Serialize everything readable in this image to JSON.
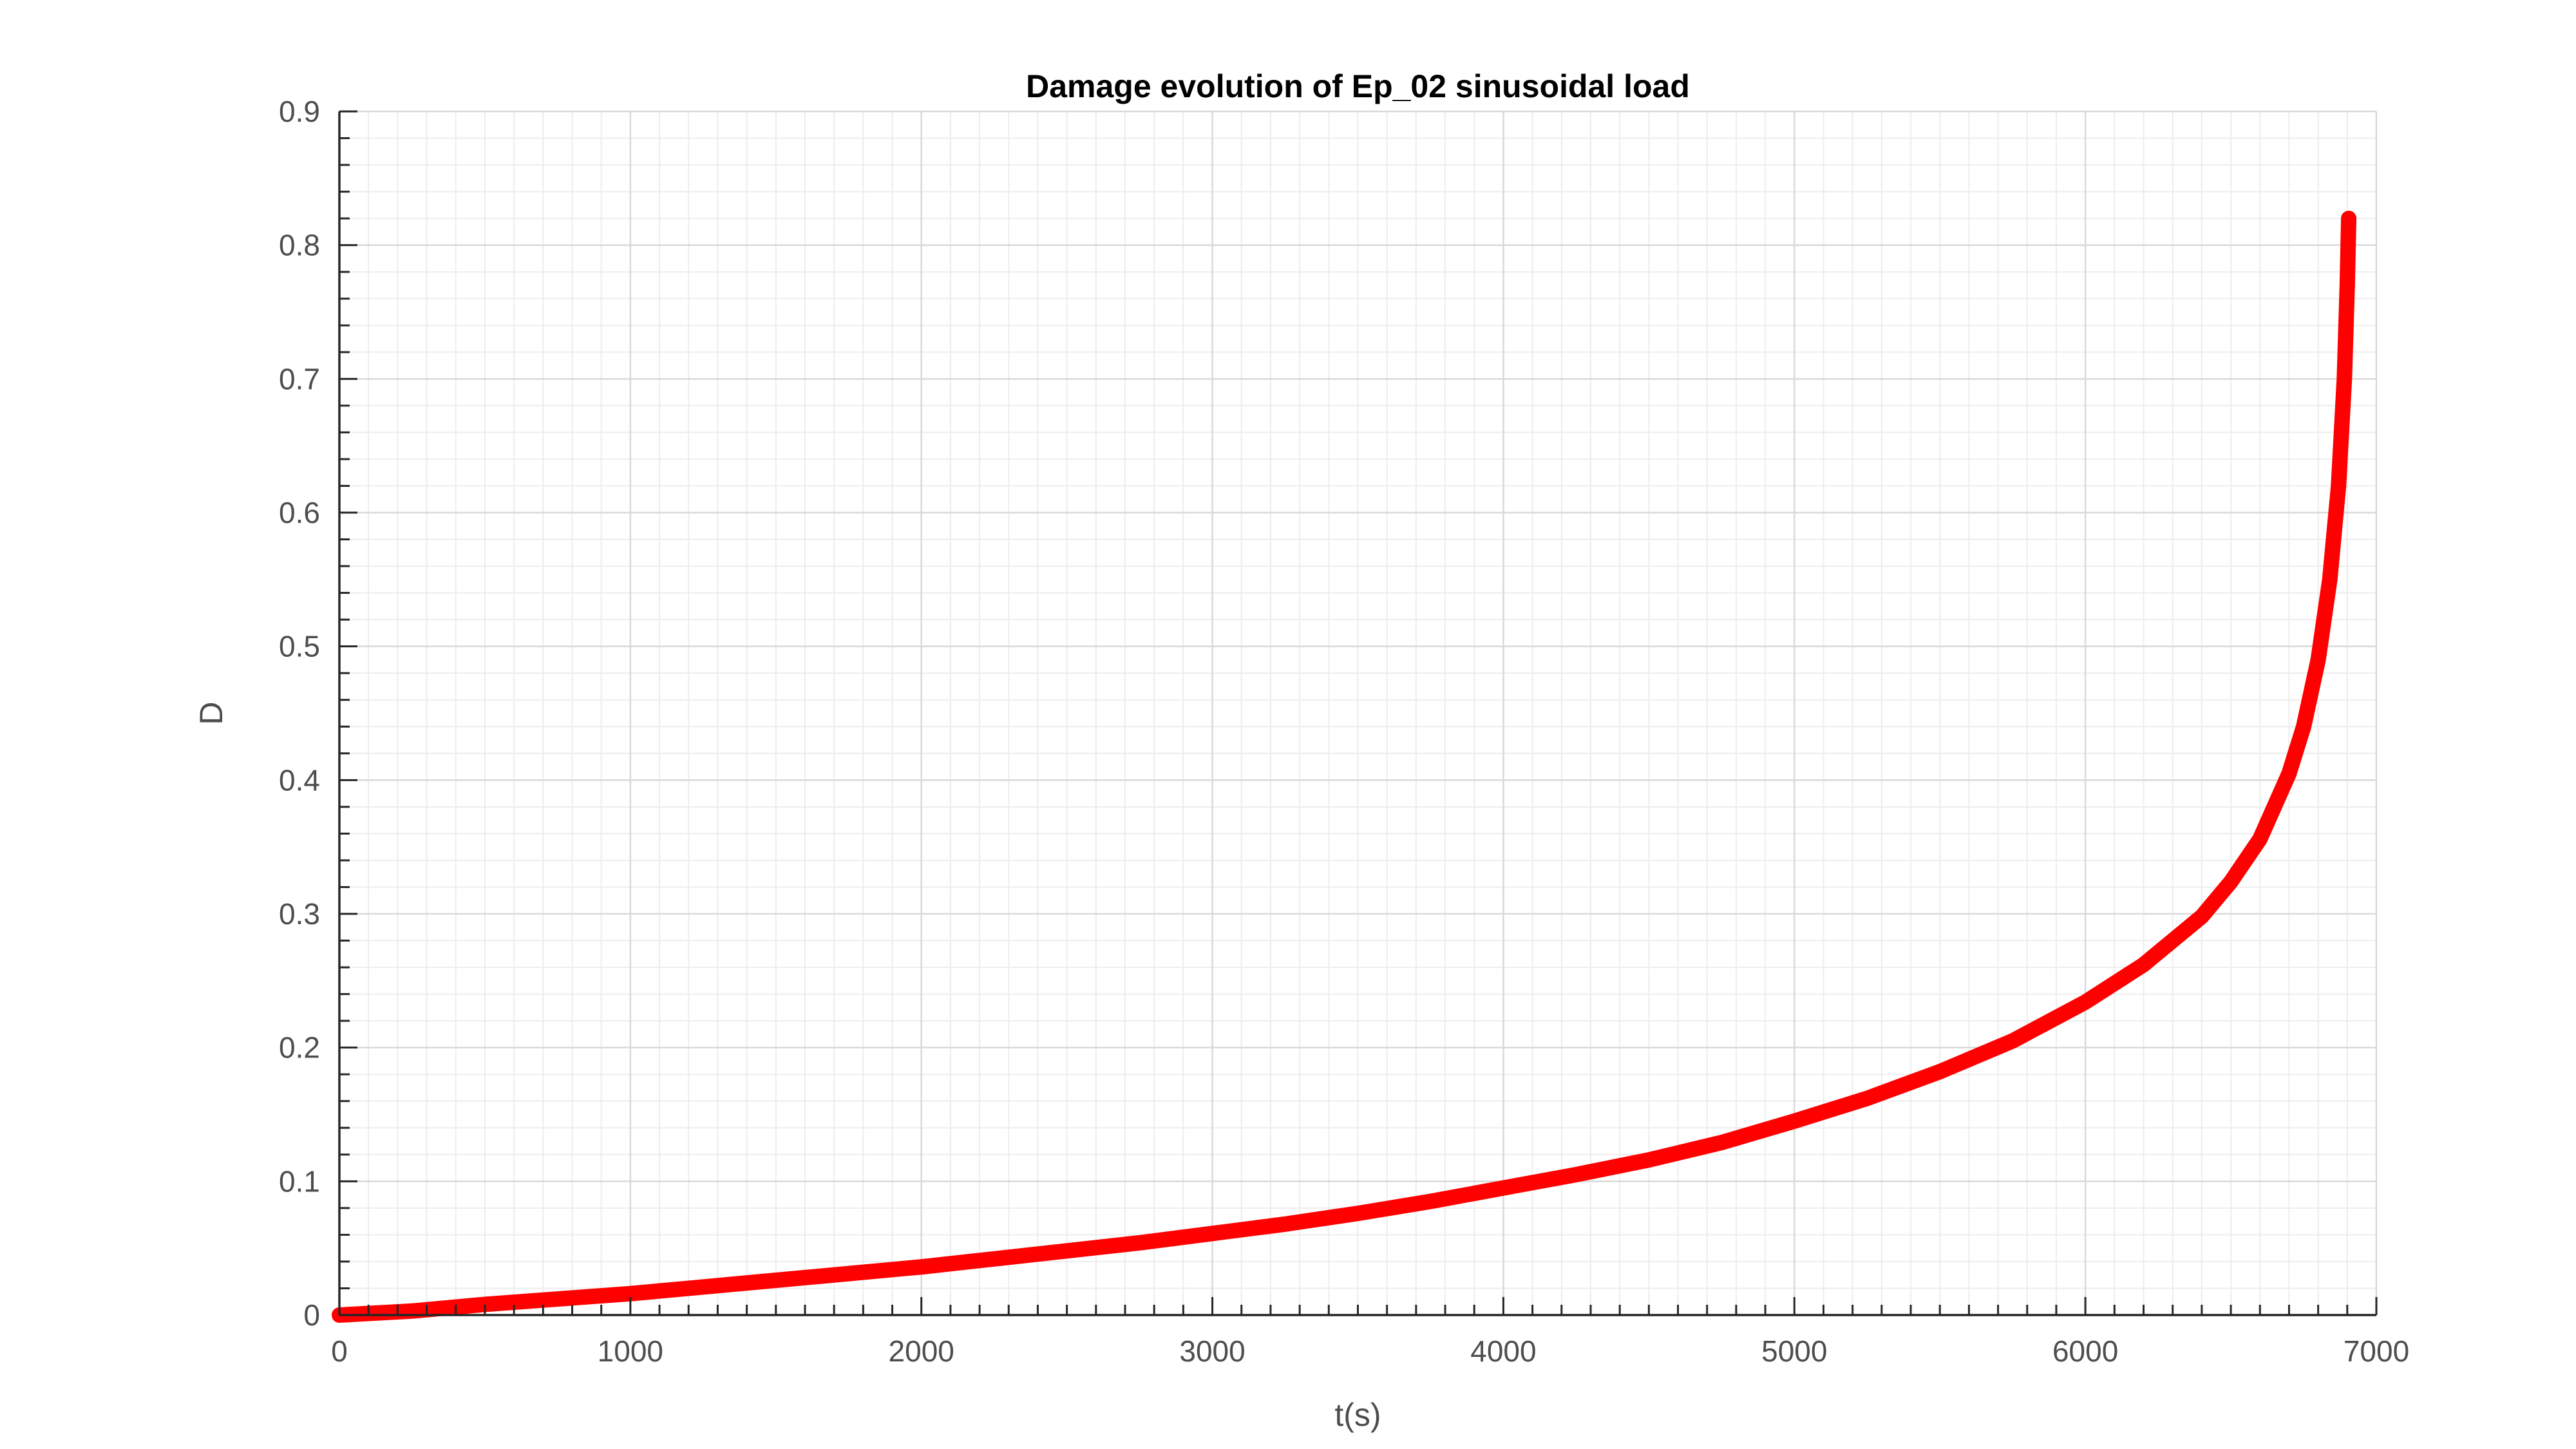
{
  "chart_data": {
    "type": "line",
    "title": "Damage evolution of Ep_02 sinusoidal load",
    "xlabel": "t(s)",
    "ylabel": "D",
    "xlim": [
      0,
      7000
    ],
    "ylim": [
      0,
      0.9
    ],
    "xticks": [
      "0",
      "1000",
      "2000",
      "3000",
      "4000",
      "5000",
      "6000",
      "7000"
    ],
    "yticks": [
      "0",
      "0.1",
      "0.2",
      "0.3",
      "0.4",
      "0.5",
      "0.6",
      "0.7",
      "0.8",
      "0.9"
    ],
    "grid": true,
    "minor_grid": true,
    "series": [
      {
        "color": "#ff0000",
        "x": [
          0,
          250,
          500,
          750,
          1000,
          1250,
          1500,
          1750,
          2000,
          2250,
          2500,
          2750,
          3000,
          3250,
          3500,
          3750,
          4000,
          4250,
          4500,
          4750,
          5000,
          5250,
          5500,
          5750,
          6000,
          6200,
          6400,
          6500,
          6600,
          6700,
          6750,
          6800,
          6840,
          6870,
          6890,
          6900,
          6905
        ],
        "y": [
          0,
          0.003,
          0.008,
          0.012,
          0.016,
          0.021,
          0.026,
          0.031,
          0.036,
          0.042,
          0.048,
          0.054,
          0.061,
          0.068,
          0.076,
          0.085,
          0.095,
          0.105,
          0.116,
          0.129,
          0.145,
          0.162,
          0.182,
          0.205,
          0.234,
          0.262,
          0.298,
          0.324,
          0.356,
          0.405,
          0.44,
          0.49,
          0.55,
          0.62,
          0.7,
          0.77,
          0.82
        ]
      }
    ]
  }
}
